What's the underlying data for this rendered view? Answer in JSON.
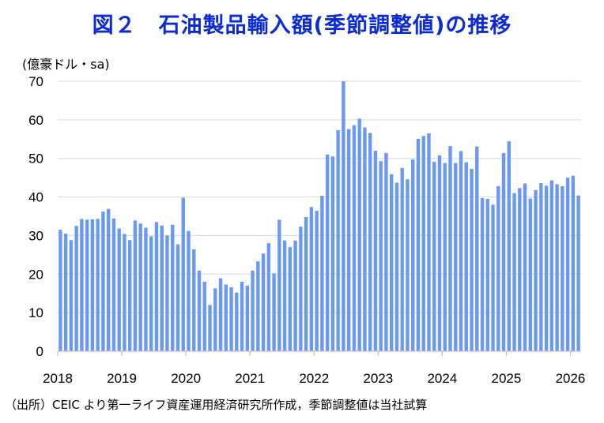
{
  "title": "図２　石油製品輸入額(季節調整値)の推移",
  "unit_label": "(億豪ドル・sa)",
  "source": "（出所）CEIC より第一ライフ資産運用経済研究所作成，季節調整値は当社試算",
  "colors": {
    "bar": "#6a98f2",
    "title": "#0b2bd6",
    "grid": "#d9d9d9",
    "axis": "#bfbfbf"
  },
  "chart_data": {
    "type": "bar",
    "title": "図２　石油製品輸入額(季節調整値)の推移",
    "ylabel": "(億豪ドル・sa)",
    "ylim": [
      0,
      70
    ],
    "yticks": [
      0,
      10,
      20,
      30,
      40,
      50,
      60,
      70
    ],
    "grid": true,
    "legend": "none",
    "x_tick_labels": [
      "2018",
      "2019",
      "2020",
      "2021",
      "2022",
      "2023",
      "2024",
      "2025",
      "2026"
    ],
    "start_period": "2018-01",
    "frequency": "monthly",
    "series": [
      {
        "values": [
          31.5,
          30.5,
          28.8,
          32.5,
          34.3,
          34.1,
          34.2,
          34.3,
          36.2,
          36.9,
          34.4,
          31.8,
          30.4,
          28.8,
          33.9,
          33.1,
          32.0,
          29.8,
          33.5,
          32.6,
          30.0,
          32.8,
          27.7,
          39.8,
          31.2,
          26.4,
          20.9,
          18.0,
          12.0,
          16.3,
          18.9,
          17.3,
          16.6,
          15.2,
          18.0,
          17.0,
          20.9,
          23.3,
          25.3,
          28.0,
          20.2,
          34.1,
          28.7,
          27.0,
          28.7,
          32.3,
          34.8,
          37.4,
          36.4,
          40.3,
          51.0,
          50.5,
          57.3,
          70.0,
          57.6,
          58.6,
          60.3,
          58.0,
          56.6,
          52.0,
          49.3,
          51.4,
          45.9,
          43.7,
          47.5,
          44.6,
          49.7,
          55.1,
          55.8,
          56.5,
          49.1,
          50.8,
          48.8,
          53.2,
          48.8,
          51.9,
          49.0,
          47.3,
          53.1,
          39.7,
          39.5,
          38.0,
          42.8,
          51.4,
          54.4,
          41.0,
          42.3,
          43.5,
          39.6,
          41.8,
          43.6,
          42.9,
          44.3,
          43.3,
          42.8,
          45.0,
          45.5,
          40.4
        ]
      }
    ]
  }
}
